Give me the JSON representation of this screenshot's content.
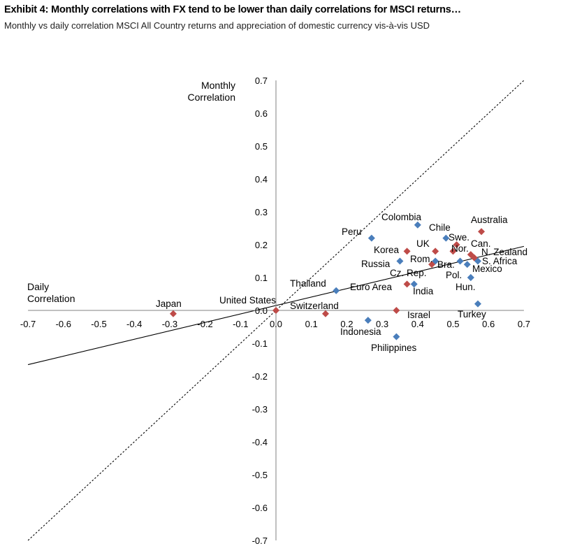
{
  "header": {
    "title": "Exhibit 4: Monthly correlations with FX tend to be lower than daily correlations for MSCI returns…",
    "subtitle": "Monthly vs daily correlation MSCI All Country returns and appreciation of domestic currency vis-à-vis USD"
  },
  "colors": {
    "blue": "#4a7ebb",
    "red": "#be4b48",
    "axis": "#808080",
    "line": "#000000"
  },
  "chart_data": {
    "type": "scatter",
    "ylabel_lines": [
      "Monthly",
      "Correlation"
    ],
    "xlabel_lines": [
      "Daily",
      "Correlation"
    ],
    "xlim": [
      -0.7,
      0.7
    ],
    "ylim": [
      -0.7,
      0.7
    ],
    "x_ticks": [
      "-0.7",
      "-0.6",
      "-0.5",
      "-0.4",
      "-0.3",
      "-0.2",
      "-0.1",
      "0.0",
      "0.1",
      "0.2",
      "0.3",
      "0.4",
      "0.5",
      "0.6",
      "0.7"
    ],
    "y_ticks": [
      "0.7",
      "0.6",
      "0.5",
      "0.4",
      "0.3",
      "0.2",
      "0.1",
      "0.0",
      "-0.1",
      "-0.2",
      "-0.3",
      "-0.4",
      "-0.5",
      "-0.6",
      "-0.7"
    ],
    "reference_lines": [
      {
        "kind": "45-degree",
        "style": "dotted",
        "from": [
          -0.7,
          -0.7
        ],
        "to": [
          0.7,
          0.7
        ]
      },
      {
        "kind": "trend",
        "style": "solid",
        "from": [
          -0.7,
          -0.165
        ],
        "to": [
          0.7,
          0.195
        ]
      }
    ],
    "points": [
      {
        "label": "Colombia",
        "x": 0.4,
        "y": 0.26,
        "color": "blue"
      },
      {
        "label": "Australia",
        "x": 0.58,
        "y": 0.24,
        "color": "red"
      },
      {
        "label": "Peru",
        "x": 0.27,
        "y": 0.22,
        "color": "blue"
      },
      {
        "label": "Chile",
        "x": 0.48,
        "y": 0.22,
        "color": "blue"
      },
      {
        "label": "Swe.",
        "x": 0.51,
        "y": 0.2,
        "color": "red"
      },
      {
        "label": "UK",
        "x": 0.45,
        "y": 0.18,
        "color": "red"
      },
      {
        "label": "Nor.",
        "x": 0.5,
        "y": 0.18,
        "color": "red"
      },
      {
        "label": "Korea",
        "x": 0.37,
        "y": 0.18,
        "color": "red"
      },
      {
        "label": "Can.",
        "x": 0.55,
        "y": 0.17,
        "color": "red"
      },
      {
        "label": "N. Zealand",
        "x": 0.56,
        "y": 0.16,
        "color": "red"
      },
      {
        "label": "S. Africa",
        "x": 0.57,
        "y": 0.15,
        "color": "blue"
      },
      {
        "label": "Rom.",
        "x": 0.45,
        "y": 0.15,
        "color": "blue"
      },
      {
        "label": "Russia",
        "x": 0.35,
        "y": 0.15,
        "color": "blue"
      },
      {
        "label": "Bra.",
        "x": 0.52,
        "y": 0.15,
        "color": "blue"
      },
      {
        "label": "Mexico",
        "x": 0.54,
        "y": 0.14,
        "color": "blue"
      },
      {
        "label": "Cz. Rep.",
        "x": 0.44,
        "y": 0.14,
        "color": "red"
      },
      {
        "label": "Pol.",
        "x": 0.55,
        "y": 0.1,
        "color": "blue"
      },
      {
        "label": "Euro Area",
        "x": 0.37,
        "y": 0.08,
        "color": "red"
      },
      {
        "label": "India",
        "x": 0.39,
        "y": 0.08,
        "color": "blue"
      },
      {
        "label": "Hun.",
        "x": 0.55,
        "y": 0.1,
        "color": "blue"
      },
      {
        "label": "Thailand",
        "x": 0.17,
        "y": 0.06,
        "color": "blue"
      },
      {
        "label": "United States",
        "x": 0.0,
        "y": 0.0,
        "color": "red"
      },
      {
        "label": "Switzerland",
        "x": 0.14,
        "y": -0.01,
        "color": "red"
      },
      {
        "label": "Japan",
        "x": -0.29,
        "y": -0.01,
        "color": "red"
      },
      {
        "label": "Turkey",
        "x": 0.57,
        "y": 0.02,
        "color": "blue"
      },
      {
        "label": "Israel",
        "x": 0.34,
        "y": 0.0,
        "color": "red"
      },
      {
        "label": "Indonesia",
        "x": 0.26,
        "y": -0.03,
        "color": "blue"
      },
      {
        "label": "Philippines",
        "x": 0.34,
        "y": -0.08,
        "color": "blue"
      }
    ]
  }
}
